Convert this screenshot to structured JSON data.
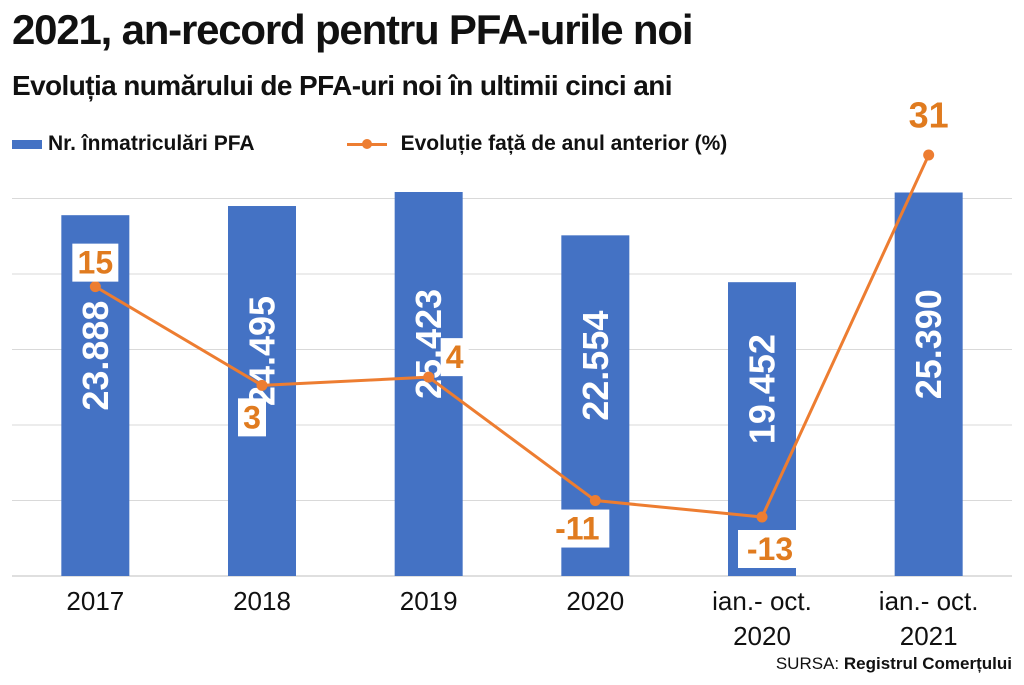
{
  "title": "2021, an-record pentru PFA-urile noi",
  "subtitle": "Evoluția numărului de PFA-uri noi în ultimii cinci ani",
  "source": {
    "prefix": "SURSA:",
    "name": "Registrul Comerțului"
  },
  "colors": {
    "bar": "#4472c4",
    "line": "#ed7d31",
    "label": "#e07b1f",
    "grid": "#d9d9d9"
  },
  "chart_data": {
    "type": "bar",
    "categories": [
      [
        "2017"
      ],
      [
        "2018"
      ],
      [
        "2019"
      ],
      [
        "2020"
      ],
      [
        "ian.- oct.",
        "2020"
      ],
      [
        "ian.- oct.",
        "2021"
      ]
    ],
    "series": [
      {
        "name": "Nr. înmatriculări PFA",
        "type": "bar",
        "values": [
          23888,
          24495,
          25423,
          22554,
          19452,
          25390
        ],
        "labels": [
          "23.888",
          "24.495",
          "25.423",
          "22.554",
          "19.452",
          "25.390"
        ]
      },
      {
        "name": "Evoluție față de anul anterior (%)",
        "type": "line",
        "values": [
          15,
          3,
          4,
          -11,
          -13,
          31
        ],
        "labels": [
          "15",
          "3",
          "4",
          "-11",
          "-13",
          "31"
        ]
      }
    ],
    "grid": true,
    "legend": "top-left"
  }
}
